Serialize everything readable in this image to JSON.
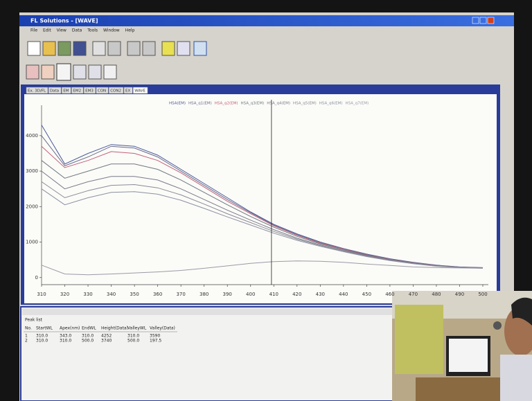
{
  "window": {
    "title": "FL Solutions - [WAVE]",
    "menu": [
      "File",
      "Edit",
      "View",
      "Data",
      "Tools",
      "Window",
      "Help"
    ],
    "tabs": [
      "Ex. 3D/FL",
      "Data",
      "EM",
      "EM2",
      "EM3",
      "CON",
      "CON2",
      "EX",
      "WAVE"
    ]
  },
  "chart_data": {
    "type": "line",
    "x": [
      310,
      320,
      330,
      340,
      350,
      360,
      370,
      380,
      390,
      400,
      410,
      420,
      430,
      440,
      450,
      460,
      470,
      480,
      490,
      500
    ],
    "xlim": [
      310,
      500
    ],
    "ylim": [
      -200,
      4700
    ],
    "xticks": [
      310,
      320,
      330,
      340,
      350,
      360,
      370,
      380,
      390,
      400,
      410,
      420,
      430,
      440,
      450,
      460,
      470,
      480,
      490,
      500
    ],
    "yticks": [
      0,
      1000,
      2000,
      3000,
      4000
    ],
    "cursor": 409,
    "series": [
      {
        "name": "HSA(EM)",
        "color": "#4a5a9a",
        "values": [
          4300,
          3200,
          3500,
          3750,
          3700,
          3450,
          3050,
          2650,
          2250,
          1850,
          1500,
          1230,
          1000,
          820,
          660,
          530,
          430,
          350,
          300,
          280
        ]
      },
      {
        "name": "HSA_q1(EM)",
        "color": "#6a6a8a",
        "values": [
          4000,
          3150,
          3400,
          3700,
          3650,
          3400,
          3000,
          2600,
          2200,
          1830,
          1480,
          1210,
          990,
          810,
          650,
          520,
          420,
          345,
          295,
          275
        ]
      },
      {
        "name": "HSA_q2(EM)",
        "color": "#c0607a",
        "values": [
          3700,
          3100,
          3300,
          3550,
          3500,
          3300,
          2950,
          2550,
          2150,
          1800,
          1460,
          1190,
          970,
          800,
          640,
          515,
          415,
          340,
          290,
          275
        ]
      },
      {
        "name": "HSA_q3(EM)",
        "color": "#707880",
        "values": [
          3300,
          2800,
          3000,
          3200,
          3200,
          3050,
          2750,
          2400,
          2050,
          1720,
          1420,
          1160,
          950,
          780,
          630,
          505,
          410,
          335,
          290,
          270
        ]
      },
      {
        "name": "HSA_q4(EM)",
        "color": "#7a7a8a",
        "values": [
          3000,
          2500,
          2700,
          2850,
          2850,
          2750,
          2500,
          2200,
          1900,
          1620,
          1350,
          1110,
          920,
          760,
          615,
          495,
          400,
          330,
          285,
          270
        ]
      },
      {
        "name": "HSA_q5(EM)",
        "color": "#8a8a96",
        "values": [
          2700,
          2250,
          2450,
          2600,
          2620,
          2530,
          2330,
          2070,
          1800,
          1550,
          1300,
          1080,
          900,
          740,
          600,
          485,
          395,
          325,
          285,
          265
        ]
      },
      {
        "name": "HSA_q6(EM)",
        "color": "#8a90a0",
        "values": [
          2500,
          2050,
          2250,
          2400,
          2420,
          2350,
          2180,
          1950,
          1710,
          1480,
          1250,
          1050,
          880,
          730,
          590,
          480,
          390,
          320,
          280,
          265
        ]
      },
      {
        "name": "HSA_q7(EM)",
        "color": "#9a9aa6",
        "values": [
          350,
          100,
          80,
          100,
          130,
          160,
          200,
          260,
          330,
          400,
          450,
          470,
          460,
          430,
          380,
          340,
          300,
          280,
          270,
          260
        ]
      }
    ]
  },
  "table": {
    "title": "Peak list",
    "header": [
      "No.",
      "StartWL",
      "Apex(nm)",
      "EndWL",
      "Height(Data)",
      "ValleyWL",
      "Valley(Data)"
    ],
    "rows": [
      [
        "1",
        "310.0",
        "343.0",
        "310.0",
        "4252",
        "310.0",
        "3590"
      ],
      [
        "2",
        "310.0",
        "310.0",
        "500.0",
        "3740",
        "500.0",
        "197.5"
      ]
    ]
  }
}
